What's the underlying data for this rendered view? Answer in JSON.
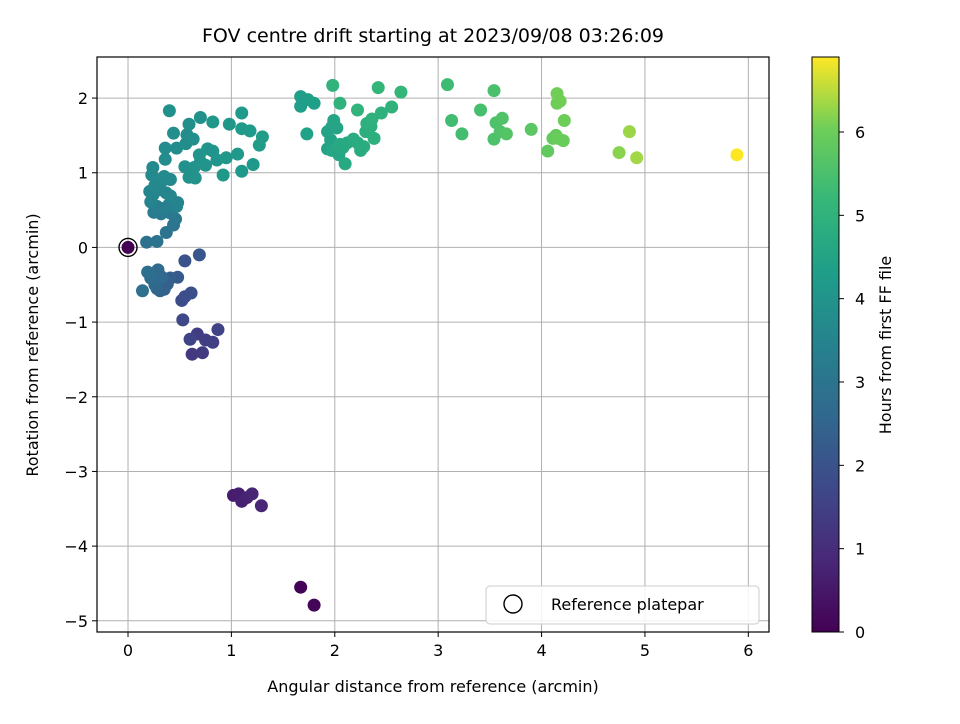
{
  "chart_data": {
    "type": "scatter",
    "title": "FOV centre drift starting at 2023/09/08 03:26:09",
    "xlabel": "Angular distance from reference (arcmin)",
    "ylabel": "Rotation from reference (arcmin)",
    "xlim": [
      -0.3,
      6.2
    ],
    "ylim": [
      -5.15,
      2.55
    ],
    "xticks": [
      0,
      1,
      2,
      3,
      4,
      5,
      6
    ],
    "xtick_labels": [
      "0",
      "1",
      "2",
      "3",
      "4",
      "5",
      "6"
    ],
    "yticks": [
      2,
      1,
      0,
      -1,
      -2,
      -3,
      -4,
      -5
    ],
    "ytick_labels": [
      "2",
      "1",
      "0",
      "−1",
      "−2",
      "−3",
      "−4",
      "−5"
    ],
    "grid": true,
    "colormap": "viridis",
    "colorbar": {
      "label": "Hours from first FF file",
      "range": [
        0,
        6.9
      ],
      "ticks": [
        0,
        1,
        2,
        3,
        4,
        5,
        6
      ],
      "tick_labels": [
        "0",
        "1",
        "2",
        "3",
        "4",
        "5",
        "6"
      ]
    },
    "legend": {
      "position": "lower-right",
      "entries": [
        "Reference platepar"
      ]
    },
    "reference_point": {
      "x": 0.0,
      "y": 0.0
    },
    "points": [
      {
        "x": 1.67,
        "y": -4.55,
        "h": 0.05
      },
      {
        "x": 1.8,
        "y": -4.79,
        "h": 0.1
      },
      {
        "x": 1.02,
        "y": -3.32,
        "h": 0.6
      },
      {
        "x": 1.07,
        "y": -3.3,
        "h": 0.65
      },
      {
        "x": 1.1,
        "y": -3.4,
        "h": 0.7
      },
      {
        "x": 1.15,
        "y": -3.35,
        "h": 0.75
      },
      {
        "x": 1.2,
        "y": -3.3,
        "h": 0.8
      },
      {
        "x": 1.29,
        "y": -3.46,
        "h": 0.85
      },
      {
        "x": 0.62,
        "y": -1.43,
        "h": 1.3
      },
      {
        "x": 0.72,
        "y": -1.41,
        "h": 1.35
      },
      {
        "x": 0.67,
        "y": -1.16,
        "h": 1.4
      },
      {
        "x": 0.75,
        "y": -1.24,
        "h": 1.45
      },
      {
        "x": 0.82,
        "y": -1.27,
        "h": 1.5
      },
      {
        "x": 0.87,
        "y": -1.1,
        "h": 1.55
      },
      {
        "x": 0.6,
        "y": -1.23,
        "h": 1.6
      },
      {
        "x": 0.53,
        "y": -0.97,
        "h": 1.7
      },
      {
        "x": 0.52,
        "y": -0.71,
        "h": 1.8
      },
      {
        "x": 0.55,
        "y": -0.66,
        "h": 1.85
      },
      {
        "x": 0.61,
        "y": -0.61,
        "h": 1.9
      },
      {
        "x": 0.55,
        "y": -0.18,
        "h": 2.0
      },
      {
        "x": 0.69,
        "y": -0.1,
        "h": 2.1
      },
      {
        "x": 0.48,
        "y": -0.4,
        "h": 2.2
      },
      {
        "x": 0.41,
        "y": -0.41,
        "h": 2.3
      },
      {
        "x": 0.38,
        "y": -0.49,
        "h": 2.35
      },
      {
        "x": 0.35,
        "y": -0.56,
        "h": 2.4
      },
      {
        "x": 0.31,
        "y": -0.58,
        "h": 2.45
      },
      {
        "x": 0.28,
        "y": -0.55,
        "h": 2.5
      },
      {
        "x": 0.26,
        "y": -0.5,
        "h": 2.55
      },
      {
        "x": 0.27,
        "y": -0.46,
        "h": 2.6
      },
      {
        "x": 0.33,
        "y": -0.4,
        "h": 2.65
      },
      {
        "x": 0.29,
        "y": -0.3,
        "h": 2.7
      },
      {
        "x": 0.22,
        "y": -0.41,
        "h": 2.75
      },
      {
        "x": 0.19,
        "y": -0.33,
        "h": 2.8
      },
      {
        "x": 0.14,
        "y": -0.58,
        "h": 2.85
      },
      {
        "x": 0.18,
        "y": 0.07,
        "h": 2.9
      },
      {
        "x": 0.28,
        "y": 0.08,
        "h": 2.95
      },
      {
        "x": 0.37,
        "y": 0.2,
        "h": 3.0
      },
      {
        "x": 0.44,
        "y": 0.3,
        "h": 3.05
      },
      {
        "x": 0.46,
        "y": 0.38,
        "h": 3.1
      },
      {
        "x": 0.41,
        "y": 0.46,
        "h": 3.15
      },
      {
        "x": 0.32,
        "y": 0.45,
        "h": 3.2
      },
      {
        "x": 0.25,
        "y": 0.47,
        "h": 3.25
      },
      {
        "x": 0.28,
        "y": 0.55,
        "h": 3.3
      },
      {
        "x": 0.36,
        "y": 0.53,
        "h": 3.35
      },
      {
        "x": 0.4,
        "y": 0.58,
        "h": 3.4
      },
      {
        "x": 0.47,
        "y": 0.55,
        "h": 3.45
      },
      {
        "x": 0.48,
        "y": 0.6,
        "h": 3.5
      },
      {
        "x": 0.22,
        "y": 0.61,
        "h": 3.5
      },
      {
        "x": 0.24,
        "y": 0.7,
        "h": 3.55
      },
      {
        "x": 0.21,
        "y": 0.75,
        "h": 3.55
      },
      {
        "x": 0.3,
        "y": 0.77,
        "h": 3.6
      },
      {
        "x": 0.37,
        "y": 0.73,
        "h": 3.6
      },
      {
        "x": 0.41,
        "y": 0.69,
        "h": 3.6
      },
      {
        "x": 0.26,
        "y": 0.83,
        "h": 3.65
      },
      {
        "x": 0.33,
        "y": 0.89,
        "h": 3.65
      },
      {
        "x": 0.41,
        "y": 0.91,
        "h": 3.65
      },
      {
        "x": 0.35,
        "y": 0.95,
        "h": 3.7
      },
      {
        "x": 0.23,
        "y": 0.97,
        "h": 3.7
      },
      {
        "x": 0.24,
        "y": 1.07,
        "h": 3.7
      },
      {
        "x": 0.36,
        "y": 1.18,
        "h": 3.75
      },
      {
        "x": 0.36,
        "y": 1.33,
        "h": 3.75
      },
      {
        "x": 0.47,
        "y": 1.33,
        "h": 3.8
      },
      {
        "x": 0.56,
        "y": 1.39,
        "h": 3.8
      },
      {
        "x": 0.57,
        "y": 1.51,
        "h": 3.8
      },
      {
        "x": 0.63,
        "y": 1.45,
        "h": 3.85
      },
      {
        "x": 0.44,
        "y": 1.53,
        "h": 3.85
      },
      {
        "x": 0.59,
        "y": 1.65,
        "h": 3.85
      },
      {
        "x": 0.7,
        "y": 1.74,
        "h": 3.9
      },
      {
        "x": 0.4,
        "y": 1.83,
        "h": 3.9
      },
      {
        "x": 0.55,
        "y": 1.08,
        "h": 3.9
      },
      {
        "x": 0.59,
        "y": 0.94,
        "h": 3.95
      },
      {
        "x": 0.65,
        "y": 0.93,
        "h": 3.95
      },
      {
        "x": 0.64,
        "y": 1.07,
        "h": 3.95
      },
      {
        "x": 0.7,
        "y": 1.15,
        "h": 4.0
      },
      {
        "x": 0.75,
        "y": 1.1,
        "h": 4.0
      },
      {
        "x": 0.69,
        "y": 1.24,
        "h": 4.0
      },
      {
        "x": 0.77,
        "y": 1.32,
        "h": 4.05
      },
      {
        "x": 0.82,
        "y": 1.29,
        "h": 4.05
      },
      {
        "x": 0.86,
        "y": 1.17,
        "h": 4.05
      },
      {
        "x": 0.92,
        "y": 0.97,
        "h": 4.1
      },
      {
        "x": 0.95,
        "y": 1.2,
        "h": 4.1
      },
      {
        "x": 0.82,
        "y": 1.68,
        "h": 4.1
      },
      {
        "x": 0.98,
        "y": 1.65,
        "h": 4.1
      },
      {
        "x": 1.06,
        "y": 1.25,
        "h": 4.15
      },
      {
        "x": 1.1,
        "y": 1.02,
        "h": 4.15
      },
      {
        "x": 1.21,
        "y": 1.11,
        "h": 4.15
      },
      {
        "x": 1.1,
        "y": 1.59,
        "h": 4.2
      },
      {
        "x": 1.18,
        "y": 1.56,
        "h": 4.2
      },
      {
        "x": 1.1,
        "y": 1.8,
        "h": 4.2
      },
      {
        "x": 1.27,
        "y": 1.37,
        "h": 4.25
      },
      {
        "x": 1.3,
        "y": 1.48,
        "h": 4.25
      },
      {
        "x": 1.67,
        "y": 1.89,
        "h": 4.3
      },
      {
        "x": 1.67,
        "y": 2.02,
        "h": 4.3
      },
      {
        "x": 1.74,
        "y": 1.98,
        "h": 4.35
      },
      {
        "x": 1.8,
        "y": 1.93,
        "h": 4.35
      },
      {
        "x": 1.73,
        "y": 1.52,
        "h": 4.4
      },
      {
        "x": 1.93,
        "y": 1.32,
        "h": 4.45
      },
      {
        "x": 1.96,
        "y": 1.44,
        "h": 4.45
      },
      {
        "x": 1.93,
        "y": 1.55,
        "h": 4.5
      },
      {
        "x": 1.97,
        "y": 1.61,
        "h": 4.5
      },
      {
        "x": 1.99,
        "y": 1.7,
        "h": 4.55
      },
      {
        "x": 2.02,
        "y": 1.6,
        "h": 4.55
      },
      {
        "x": 1.97,
        "y": 1.3,
        "h": 4.6
      },
      {
        "x": 2.04,
        "y": 1.24,
        "h": 4.6
      },
      {
        "x": 2.05,
        "y": 1.38,
        "h": 4.65
      },
      {
        "x": 2.08,
        "y": 1.34,
        "h": 4.65
      },
      {
        "x": 2.1,
        "y": 1.12,
        "h": 4.7
      },
      {
        "x": 2.12,
        "y": 1.4,
        "h": 4.7
      },
      {
        "x": 2.18,
        "y": 1.45,
        "h": 4.75
      },
      {
        "x": 2.22,
        "y": 1.4,
        "h": 4.75
      },
      {
        "x": 2.25,
        "y": 1.3,
        "h": 4.8
      },
      {
        "x": 2.28,
        "y": 1.35,
        "h": 4.8
      },
      {
        "x": 2.3,
        "y": 1.55,
        "h": 4.85
      },
      {
        "x": 2.35,
        "y": 1.62,
        "h": 4.85
      },
      {
        "x": 2.38,
        "y": 1.46,
        "h": 4.9
      },
      {
        "x": 2.31,
        "y": 1.66,
        "h": 4.9
      },
      {
        "x": 2.36,
        "y": 1.72,
        "h": 4.95
      },
      {
        "x": 2.45,
        "y": 1.8,
        "h": 4.95
      },
      {
        "x": 2.55,
        "y": 1.88,
        "h": 5.0
      },
      {
        "x": 2.05,
        "y": 1.93,
        "h": 5.0
      },
      {
        "x": 2.22,
        "y": 1.84,
        "h": 5.05
      },
      {
        "x": 1.98,
        "y": 2.17,
        "h": 5.05
      },
      {
        "x": 2.42,
        "y": 2.14,
        "h": 5.1
      },
      {
        "x": 2.64,
        "y": 2.08,
        "h": 5.15
      },
      {
        "x": 3.09,
        "y": 2.18,
        "h": 5.3
      },
      {
        "x": 3.13,
        "y": 1.7,
        "h": 5.35
      },
      {
        "x": 3.23,
        "y": 1.52,
        "h": 5.4
      },
      {
        "x": 3.41,
        "y": 1.84,
        "h": 5.45
      },
      {
        "x": 3.54,
        "y": 2.1,
        "h": 5.5
      },
      {
        "x": 3.54,
        "y": 1.45,
        "h": 5.55
      },
      {
        "x": 3.56,
        "y": 1.67,
        "h": 5.55
      },
      {
        "x": 3.6,
        "y": 1.55,
        "h": 5.6
      },
      {
        "x": 3.62,
        "y": 1.73,
        "h": 5.6
      },
      {
        "x": 3.66,
        "y": 1.52,
        "h": 5.65
      },
      {
        "x": 3.9,
        "y": 1.58,
        "h": 5.75
      },
      {
        "x": 4.06,
        "y": 1.29,
        "h": 5.85
      },
      {
        "x": 4.11,
        "y": 1.46,
        "h": 5.9
      },
      {
        "x": 4.14,
        "y": 1.5,
        "h": 5.9
      },
      {
        "x": 4.16,
        "y": 1.46,
        "h": 5.95
      },
      {
        "x": 4.21,
        "y": 1.43,
        "h": 5.95
      },
      {
        "x": 4.22,
        "y": 1.7,
        "h": 6.0
      },
      {
        "x": 4.15,
        "y": 1.93,
        "h": 6.0
      },
      {
        "x": 4.18,
        "y": 1.96,
        "h": 6.05
      },
      {
        "x": 4.15,
        "y": 2.06,
        "h": 6.05
      },
      {
        "x": 4.75,
        "y": 1.27,
        "h": 6.2
      },
      {
        "x": 4.85,
        "y": 1.55,
        "h": 6.3
      },
      {
        "x": 4.92,
        "y": 1.2,
        "h": 6.35
      },
      {
        "x": 5.89,
        "y": 1.24,
        "h": 6.9
      }
    ]
  }
}
